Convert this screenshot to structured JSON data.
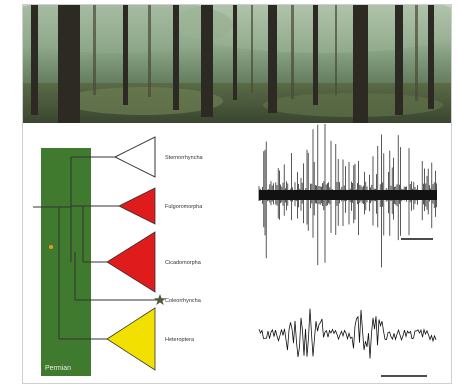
{
  "figure": {
    "period_label": "Permian",
    "taxa": [
      {
        "label": "Sternorrhyncha",
        "triangle_color": "#ffffff"
      },
      {
        "label": "Fulgoromorpha",
        "triangle_color": "#e01b1b"
      },
      {
        "label": "Cicadomorpha",
        "triangle_color": "#e01b1b"
      },
      {
        "label": "Coleorrhyncha",
        "triangle_color": "#ffffff"
      },
      {
        "label": "Heteroptera",
        "triangle_color": "#f2e100"
      }
    ],
    "colors": {
      "permian_bar": "#3f7a2f",
      "tree_line": "#333333",
      "signal": "#111111",
      "fossil_dot": "#e59a2a"
    },
    "icons": {
      "node_marker": "star-icon",
      "fossil_marker": "dot-icon"
    }
  }
}
